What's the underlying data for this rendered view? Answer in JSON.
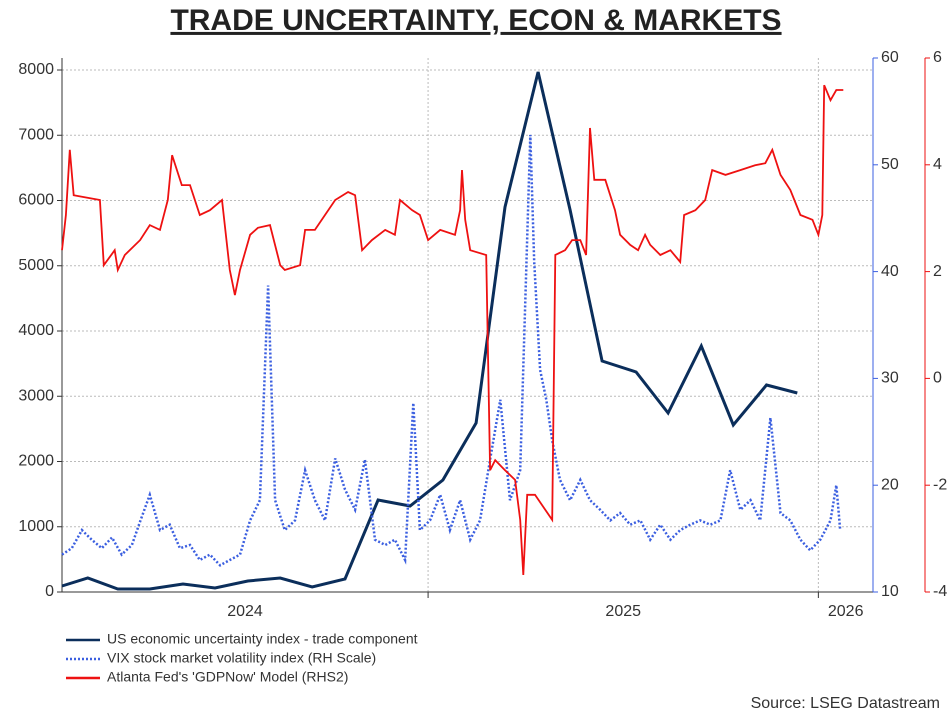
{
  "chart_data": {
    "type": "line",
    "title": "TRADE UNCERTAINTY, ECON & MARKETS",
    "source": "Source: LSEG Datastream",
    "xlim": [
      2024.062,
      2026.14
    ],
    "xticks": [
      2024,
      2025,
      2026
    ],
    "ylim": [
      0,
      8184
    ],
    "yticks": [
      0,
      1000,
      2000,
      3000,
      4000,
      5000,
      6000,
      7000,
      8000
    ],
    "y2lim": [
      10,
      60
    ],
    "y2ticks": [
      10,
      20,
      30,
      40,
      50,
      60
    ],
    "y3lim": [
      -4,
      6
    ],
    "y3ticks": [
      -4,
      -2,
      0,
      2,
      4,
      6
    ],
    "grid": true,
    "series": [
      {
        "name": "US economic uncertainty index - trade component",
        "color": "#0b2e5b",
        "axis": "y",
        "style": "solid",
        "x": [
          2024.062,
          2024.128,
          2024.205,
          2024.287,
          2024.372,
          2024.454,
          2024.538,
          2024.621,
          2024.703,
          2024.787,
          2024.872,
          2024.954,
          2025.038,
          2025.123,
          2025.197,
          2025.282,
          2025.364,
          2025.446,
          2025.533,
          2025.615,
          2025.7,
          2025.782,
          2025.867,
          2025.946
        ],
        "values": [
          92,
          215,
          46,
          46,
          123,
          61,
          169,
          215,
          77,
          199,
          1410,
          1318,
          1716,
          2590,
          5900,
          7970,
          5855,
          3540,
          3372,
          2743,
          3770,
          2560,
          3172,
          3050
        ]
      },
      {
        "name": "VIX stock market volatility index (RH Scale)",
        "color": "#3b5fe0",
        "axis": "y2",
        "style": "dotted",
        "x": [
          2024.062,
          2024.087,
          2024.113,
          2024.138,
          2024.164,
          2024.19,
          2024.215,
          2024.241,
          2024.262,
          2024.287,
          2024.313,
          2024.338,
          2024.364,
          2024.39,
          2024.415,
          2024.441,
          2024.467,
          2024.492,
          2024.518,
          2024.544,
          2024.569,
          2024.59,
          2024.608,
          2024.633,
          2024.659,
          2024.685,
          2024.71,
          2024.736,
          2024.762,
          2024.787,
          2024.813,
          2024.838,
          2024.864,
          2024.89,
          2024.915,
          2024.941,
          2024.962,
          2024.979,
          2025.005,
          2025.031,
          2025.056,
          2025.082,
          2025.108,
          2025.133,
          2025.159,
          2025.185,
          2025.21,
          2025.236,
          2025.262,
          2025.272,
          2025.287,
          2025.303,
          2025.318,
          2025.338,
          2025.364,
          2025.39,
          2025.415,
          2025.441,
          2025.467,
          2025.492,
          2025.518,
          2025.544,
          2025.569,
          2025.595,
          2025.621,
          2025.646,
          2025.672,
          2025.697,
          2025.723,
          2025.749,
          2025.774,
          2025.8,
          2025.826,
          2025.851,
          2025.877,
          2025.903,
          2025.928,
          2025.954,
          2025.979,
          2026.005,
          2026.031,
          2026.046,
          2026.056
        ],
        "values": [
          13.5,
          14.1,
          15.8,
          14.9,
          14.1,
          15.1,
          13.5,
          14.4,
          16.6,
          19.1,
          15.8,
          16.3,
          14.1,
          14.4,
          13.0,
          13.5,
          12.5,
          13.0,
          13.5,
          16.7,
          18.6,
          38.7,
          18.6,
          15.8,
          16.7,
          21.4,
          18.6,
          16.7,
          22.5,
          19.6,
          17.7,
          22.4,
          14.9,
          14.4,
          14.9,
          13.0,
          27.7,
          15.8,
          16.7,
          19.1,
          15.8,
          18.6,
          14.9,
          16.7,
          22.4,
          28.0,
          18.6,
          21.4,
          52.8,
          40.9,
          30.8,
          28.0,
          24.2,
          20.5,
          18.6,
          20.5,
          18.6,
          17.7,
          16.7,
          17.4,
          16.3,
          16.7,
          14.9,
          16.3,
          14.9,
          15.8,
          16.3,
          16.7,
          16.3,
          16.7,
          21.4,
          17.7,
          18.6,
          16.7,
          26.3,
          17.4,
          16.7,
          14.9,
          13.9,
          14.9,
          16.7,
          20.0,
          15.8
        ]
      },
      {
        "name": "Atlanta Fed's 'GDPNow' Model (RHS2)",
        "color": "#ee1111",
        "axis": "y3",
        "style": "solid",
        "x": [
          2024.062,
          2024.072,
          2024.082,
          2024.092,
          2024.159,
          2024.169,
          2024.197,
          2024.205,
          2024.223,
          2024.262,
          2024.287,
          2024.313,
          2024.333,
          2024.344,
          2024.369,
          2024.39,
          2024.415,
          2024.441,
          2024.472,
          2024.492,
          2024.505,
          2024.518,
          2024.544,
          2024.564,
          2024.595,
          2024.621,
          2024.633,
          2024.672,
          2024.685,
          2024.71,
          2024.736,
          2024.762,
          2024.795,
          2024.813,
          2024.831,
          2024.856,
          2024.89,
          2024.915,
          2024.928,
          2024.959,
          2024.979,
          2025.0,
          2025.031,
          2025.069,
          2025.082,
          2025.087,
          2025.095,
          2025.108,
          2025.149,
          2025.159,
          2025.172,
          2025.197,
          2025.223,
          2025.236,
          2025.244,
          2025.254,
          2025.274,
          2025.318,
          2025.326,
          2025.351,
          2025.369,
          2025.39,
          2025.405,
          2025.415,
          2025.426,
          2025.454,
          2025.479,
          2025.492,
          2025.518,
          2025.538,
          2025.556,
          2025.569,
          2025.595,
          2025.621,
          2025.646,
          2025.656,
          2025.685,
          2025.71,
          2025.728,
          2025.762,
          2025.8,
          2025.838,
          2025.864,
          2025.882,
          2025.903,
          2025.928,
          2025.954,
          2025.985,
          2026.0,
          2026.01,
          2026.015,
          2026.031,
          2026.046,
          2026.064
        ],
        "values": [
          2.4,
          3.06,
          4.28,
          3.43,
          3.34,
          2.12,
          2.4,
          2.03,
          2.31,
          2.59,
          2.87,
          2.78,
          3.34,
          4.18,
          3.62,
          3.62,
          3.06,
          3.15,
          3.34,
          2.03,
          1.56,
          2.03,
          2.69,
          2.82,
          2.87,
          2.12,
          2.03,
          2.12,
          2.78,
          2.78,
          3.06,
          3.34,
          3.49,
          3.43,
          2.4,
          2.59,
          2.78,
          2.69,
          3.34,
          3.15,
          3.06,
          2.59,
          2.78,
          2.69,
          3.15,
          3.9,
          2.97,
          2.4,
          2.31,
          -1.72,
          -1.53,
          -1.72,
          -1.9,
          -2.65,
          -3.68,
          -2.18,
          -2.18,
          -2.65,
          2.31,
          2.4,
          2.59,
          2.59,
          2.31,
          4.69,
          3.72,
          3.72,
          3.15,
          2.69,
          2.5,
          2.4,
          2.69,
          2.5,
          2.31,
          2.4,
          2.18,
          3.06,
          3.15,
          3.34,
          3.9,
          3.81,
          3.9,
          3.99,
          4.03,
          4.28,
          3.81,
          3.53,
          3.06,
          2.97,
          2.69,
          3.06,
          5.49,
          5.21,
          5.4,
          5.4
        ]
      }
    ]
  }
}
